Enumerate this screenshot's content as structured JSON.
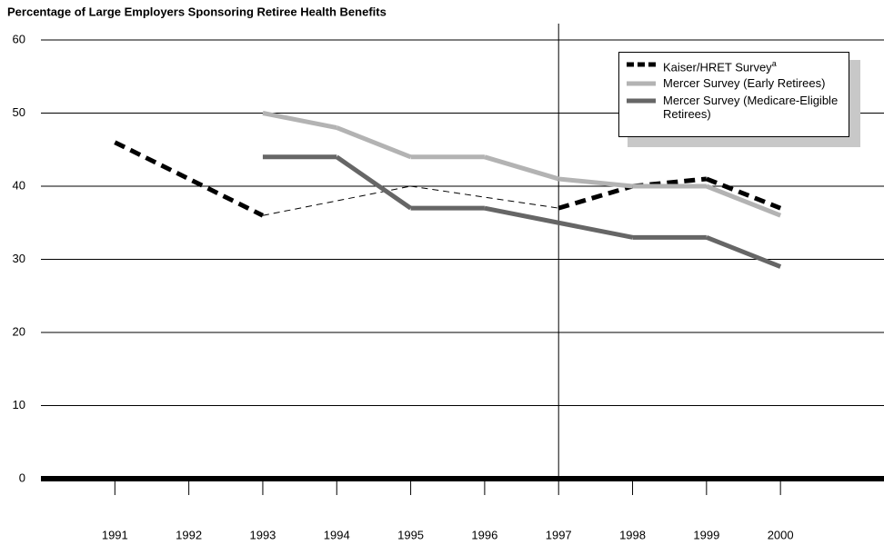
{
  "chart_data": {
    "type": "line",
    "title": "Percentage of Large Employers Sponsoring Retiree Health Benefits",
    "xlim": [
      1990,
      2001.4
    ],
    "xticks": [
      1991,
      1992,
      1993,
      1994,
      1995,
      1996,
      1997,
      1998,
      1999,
      2000
    ],
    "ylim": [
      0,
      60
    ],
    "yticks": [
      0,
      10,
      20,
      30,
      40,
      50,
      60
    ],
    "grid": true,
    "reference_x": 1997,
    "series": [
      {
        "name": "Kaiser/HRET Survey",
        "note_marker": "a",
        "color": "#000000",
        "dashed": true,
        "x": [
          1991,
          1993,
          1995,
          1997,
          1998,
          1999,
          2000
        ],
        "values": [
          46,
          36,
          40,
          37,
          40,
          41,
          37
        ],
        "segment_styles": [
          "thick",
          "thin",
          "thin",
          "thick",
          "thick",
          "thick"
        ]
      },
      {
        "name": "Mercer Survey (Early Retirees)",
        "color": "#b3b3b3",
        "dashed": false,
        "x": [
          1993,
          1994,
          1995,
          1996,
          1997,
          1998,
          1999,
          2000
        ],
        "values": [
          50,
          48,
          44,
          44,
          41,
          40,
          40,
          36
        ]
      },
      {
        "name": "Mercer Survey (Medicare-Eligible Retirees)",
        "color": "#666666",
        "dashed": false,
        "x": [
          1993,
          1994,
          1995,
          1996,
          1997,
          1998,
          1999,
          2000
        ],
        "values": [
          44,
          44,
          37,
          37,
          35,
          33,
          33,
          29
        ]
      }
    ]
  }
}
